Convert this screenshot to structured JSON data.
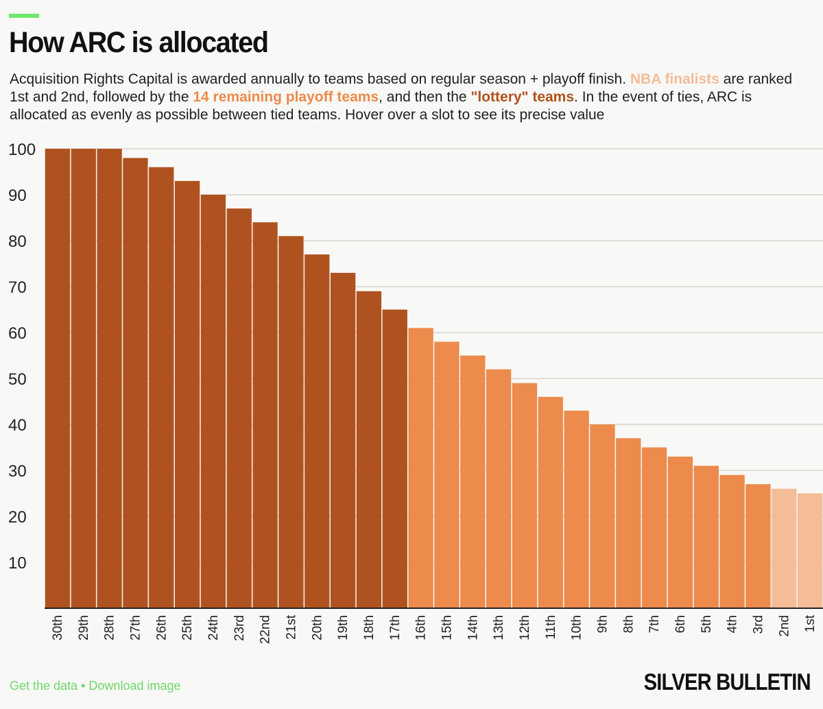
{
  "header": {
    "title": "How ARC is allocated",
    "subtitle_parts": [
      {
        "text": "Acquisition Rights Capital is awarded annually to teams based on regular season + playoff finish. ",
        "style": "plain"
      },
      {
        "text": "NBA finalists",
        "style": "finalists"
      },
      {
        "text": " are ranked 1st and 2nd, followed by the ",
        "style": "plain"
      },
      {
        "text": "14 remaining playoff teams",
        "style": "playoff"
      },
      {
        "text": ", and then the ",
        "style": "plain"
      },
      {
        "text": "\"lottery\" teams",
        "style": "lottery"
      },
      {
        "text": ". In the event of ties, ARC is allocated as evenly as possible between tied teams. Hover over a slot to see its precise value",
        "style": "plain"
      }
    ]
  },
  "colors": {
    "accent": "#6ee86a",
    "lottery": "#b0521f",
    "playoff": "#ec8b4b",
    "finalists": "#f4bc97",
    "grid": "#d9d2cc",
    "axis": "#222222"
  },
  "chart_data": {
    "type": "bar",
    "title": "How ARC is allocated",
    "xlabel": "",
    "ylabel": "",
    "ylim": [
      0,
      100
    ],
    "yticks": [
      10,
      20,
      30,
      40,
      50,
      60,
      70,
      80,
      90,
      100
    ],
    "grid": true,
    "categories": [
      "30th",
      "29th",
      "28th",
      "27th",
      "26th",
      "25th",
      "24th",
      "23rd",
      "22nd",
      "21st",
      "20th",
      "19th",
      "18th",
      "17th",
      "16th",
      "15th",
      "14th",
      "13th",
      "12th",
      "11th",
      "10th",
      "9th",
      "8th",
      "7th",
      "6th",
      "5th",
      "4th",
      "3rd",
      "2nd",
      "1st"
    ],
    "values": [
      100,
      100,
      100,
      98,
      96,
      93,
      90,
      87,
      84,
      81,
      77,
      73,
      69,
      65,
      61,
      58,
      55,
      52,
      49,
      46,
      43,
      40,
      37,
      35,
      33,
      31,
      29,
      27,
      26,
      25
    ],
    "groups": [
      "lottery",
      "lottery",
      "lottery",
      "lottery",
      "lottery",
      "lottery",
      "lottery",
      "lottery",
      "lottery",
      "lottery",
      "lottery",
      "lottery",
      "lottery",
      "lottery",
      "playoff",
      "playoff",
      "playoff",
      "playoff",
      "playoff",
      "playoff",
      "playoff",
      "playoff",
      "playoff",
      "playoff",
      "playoff",
      "playoff",
      "playoff",
      "playoff",
      "finalists",
      "finalists"
    ],
    "legend": [
      {
        "name": "NBA finalists",
        "group": "finalists"
      },
      {
        "name": "14 remaining playoff teams",
        "group": "playoff"
      },
      {
        "name": "\"lottery\" teams",
        "group": "lottery"
      }
    ]
  },
  "footer": {
    "get_data": "Get the data",
    "separator": "•",
    "download": "Download image",
    "brand": "SILVER BULLETIN"
  }
}
